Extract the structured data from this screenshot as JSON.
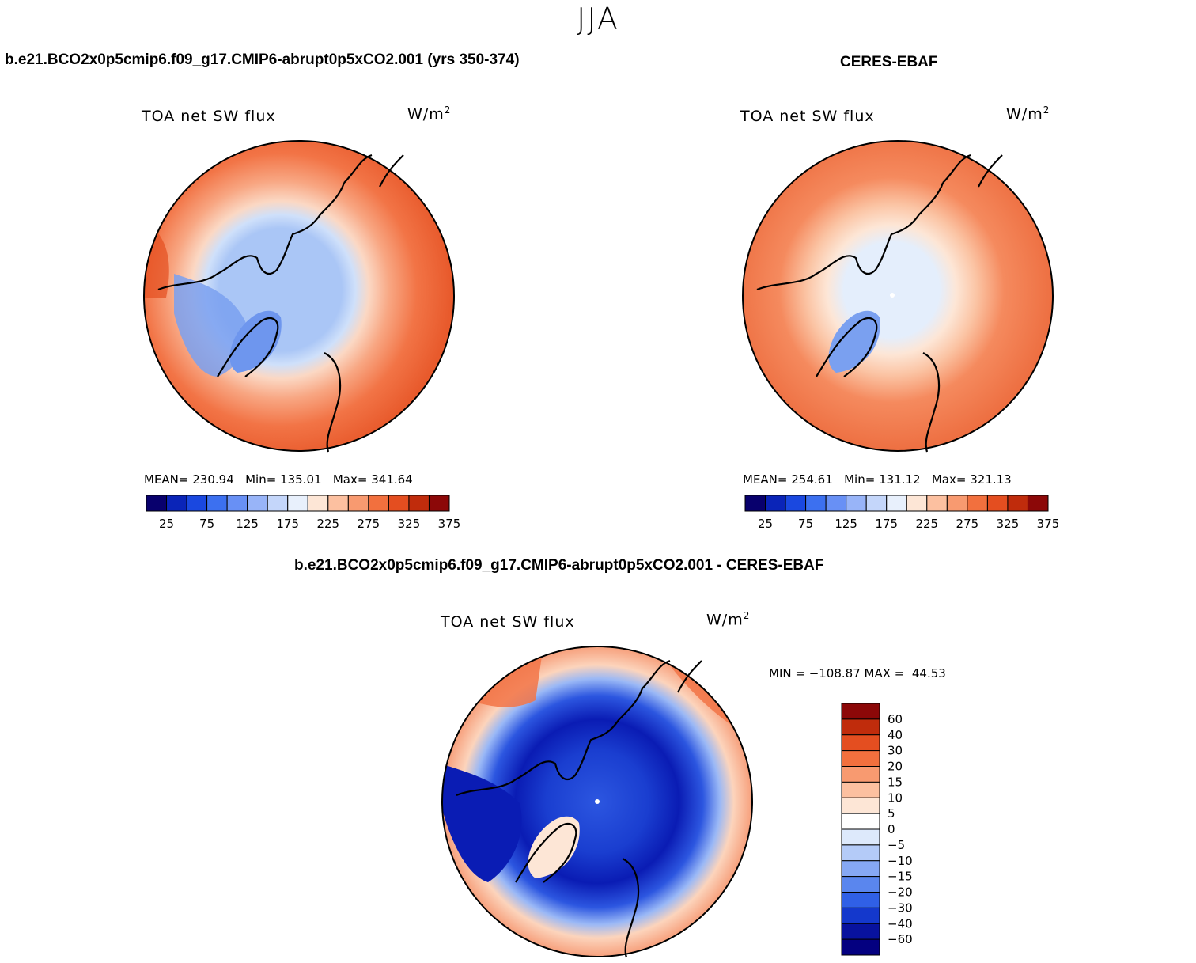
{
  "main_title": "JJA",
  "panels": {
    "model": {
      "case_title": "b.e21.BCO2x0p5cmip6.f09_g17.CMIP6-abrupt0p5xCO2.001 (yrs 350-374)",
      "plot_title": "TOA net SW flux",
      "units": "W/m",
      "units_sup": "2",
      "stats": {
        "mean_label": "MEAN=",
        "mean": "230.94",
        "min_label": "Min=",
        "min": "135.01",
        "max_label": "Max=",
        "max": "341.64"
      }
    },
    "obs": {
      "case_title": "CERES-EBAF",
      "plot_title": "TOA net SW flux",
      "units": "W/m",
      "units_sup": "2",
      "stats": {
        "mean_label": "MEAN=",
        "mean": "254.61",
        "min_label": "Min=",
        "min": "131.12",
        "max_label": "Max=",
        "max": "321.13"
      }
    },
    "diff": {
      "case_title": "b.e21.BCO2x0p5cmip6.f09_g17.CMIP6-abrupt0p5xCO2.001 - CERES-EBAF",
      "plot_title": "TOA net SW flux",
      "units": "W/m",
      "units_sup": "2",
      "minmax": "MIN = −108.87 MAX =  44.53"
    }
  },
  "chart_data": [
    {
      "type": "heatmap",
      "title": "TOA net SW flux",
      "projection": "north polar stereographic",
      "units": "W/m2",
      "mean": 230.94,
      "min": 135.01,
      "max": 341.64,
      "colorbar": {
        "orientation": "horizontal",
        "tick_labels": [
          "25",
          "75",
          "125",
          "175",
          "225",
          "275",
          "325",
          "375"
        ],
        "colors": [
          "#08006d",
          "#0a24b8",
          "#1a48e0",
          "#3c70f0",
          "#6890f5",
          "#98b4f8",
          "#c4d6fa",
          "#e8f0fc",
          "#fde6d6",
          "#fcc0a0",
          "#f89a70",
          "#f2703e",
          "#e44e20",
          "#c02c0c",
          "#8c0808"
        ]
      }
    },
    {
      "type": "heatmap",
      "title": "TOA net SW flux",
      "projection": "north polar stereographic",
      "units": "W/m2",
      "mean": 254.61,
      "min": 131.12,
      "max": 321.13,
      "colorbar": {
        "orientation": "horizontal",
        "tick_labels": [
          "25",
          "75",
          "125",
          "175",
          "225",
          "275",
          "325",
          "375"
        ],
        "colors": [
          "#08006d",
          "#0a24b8",
          "#1a48e0",
          "#3c70f0",
          "#6890f5",
          "#98b4f8",
          "#c4d6fa",
          "#e8f0fc",
          "#fde6d6",
          "#fcc0a0",
          "#f89a70",
          "#f2703e",
          "#e44e20",
          "#c02c0c",
          "#8c0808"
        ]
      }
    },
    {
      "type": "heatmap",
      "title": "TOA net SW flux",
      "projection": "north polar stereographic",
      "units": "W/m2",
      "min": -108.87,
      "max": 44.53,
      "colorbar": {
        "orientation": "vertical",
        "tick_labels": [
          "60",
          "40",
          "30",
          "20",
          "15",
          "10",
          "5",
          "0",
          "−5",
          "−10",
          "−15",
          "−20",
          "−30",
          "−40",
          "−60"
        ],
        "colors": [
          "#8c0808",
          "#c02c0c",
          "#e44e20",
          "#f2703e",
          "#f89a70",
          "#fcc0a0",
          "#fde6d6",
          "#ffffff",
          "#dde9fb",
          "#b4cbf8",
          "#86a8f4",
          "#5a86ee",
          "#3060e6",
          "#1438cc",
          "#08129e",
          "#040080"
        ]
      }
    }
  ],
  "colors": {
    "warm_deep": "#e85a2c",
    "warm_mid": "#f58a5e",
    "warm_light": "#fbc4a4",
    "cool_light": "#cfe0fa",
    "cool_mid": "#aac6f6",
    "cool_strong": "#7aa0f0",
    "diff_deep_blue": "#0a1cb4",
    "diff_mid_blue": "#2c56e0"
  }
}
